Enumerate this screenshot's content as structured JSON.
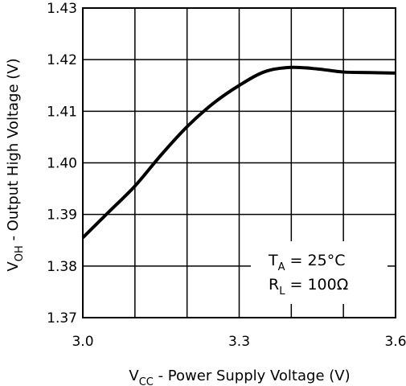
{
  "chart_data": {
    "type": "line",
    "title": "",
    "xlabel": {
      "main": "V",
      "sub": "CC",
      "rest": " - Power Supply Voltage (V)"
    },
    "ylabel": {
      "main": "V",
      "sub": "OH",
      "rest": " - Output High Voltage (V)"
    },
    "xlim": [
      3.0,
      3.6
    ],
    "ylim": [
      1.37,
      1.43
    ],
    "x_ticks": [
      3.0,
      3.3,
      3.6
    ],
    "x_tick_labels": [
      "3.0",
      "3.3",
      "3.6"
    ],
    "x_grid": [
      3.0,
      3.1,
      3.2,
      3.3,
      3.4,
      3.5,
      3.6
    ],
    "y_ticks": [
      1.37,
      1.38,
      1.39,
      1.4,
      1.41,
      1.42,
      1.43
    ],
    "y_tick_labels": [
      "1.37",
      "1.38",
      "1.39",
      "1.40",
      "1.41",
      "1.42",
      "1.43"
    ],
    "grid": true,
    "legend": false,
    "series": [
      {
        "x": [
          3.0,
          3.05,
          3.1,
          3.15,
          3.2,
          3.25,
          3.3,
          3.35,
          3.4,
          3.45,
          3.5,
          3.55,
          3.6
        ],
        "y": [
          1.3855,
          1.3905,
          1.3955,
          1.4015,
          1.407,
          1.4115,
          1.415,
          1.4177,
          1.4185,
          1.4182,
          1.4176,
          1.4175,
          1.4174
        ]
      }
    ],
    "annotations": {
      "ta": {
        "main": "T",
        "sub": "A",
        "rest": " = 25°C"
      },
      "rl": {
        "main": "R",
        "sub": "L",
        "rest": " = 100Ω"
      }
    }
  }
}
